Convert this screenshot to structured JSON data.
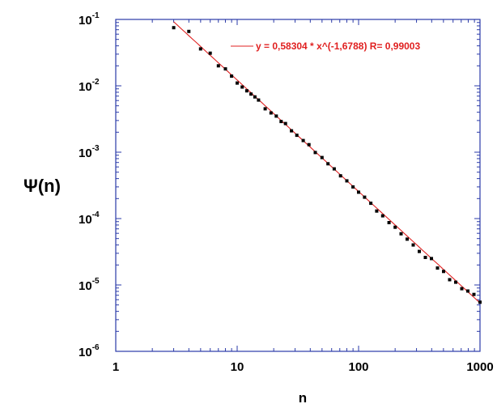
{
  "chart_data": {
    "type": "scatter",
    "title": "",
    "xlabel": "n",
    "ylabel": "Ψ(n)",
    "xscale": "log",
    "yscale": "log",
    "xlim": [
      1,
      1000
    ],
    "ylim": [
      1e-06,
      0.1
    ],
    "grid": false,
    "x_ticks": [
      {
        "value": 1,
        "label": "1"
      },
      {
        "value": 10,
        "label": "10"
      },
      {
        "value": 100,
        "label": "100"
      },
      {
        "value": 1000,
        "label": "1000"
      }
    ],
    "y_ticks": [
      {
        "value": 0.1,
        "base": "10",
        "exp": "-1"
      },
      {
        "value": 0.01,
        "base": "10",
        "exp": "-2"
      },
      {
        "value": 0.001,
        "base": "10",
        "exp": "-3"
      },
      {
        "value": 0.0001,
        "base": "10",
        "exp": "-4"
      },
      {
        "value": 1e-05,
        "base": "10",
        "exp": "-5"
      },
      {
        "value": 1e-06,
        "base": "10",
        "exp": "-6"
      }
    ],
    "frame_color": "#2a3aa8",
    "series": [
      {
        "marker": "square",
        "color": "#000000",
        "x": [
          3,
          4,
          5,
          6,
          7,
          8,
          9,
          10,
          11,
          12,
          13,
          14,
          15,
          17,
          19,
          21,
          23,
          25,
          28,
          31,
          35,
          39,
          44,
          50,
          56,
          63,
          71,
          80,
          90,
          100,
          112,
          126,
          141,
          158,
          178,
          200,
          224,
          251,
          282,
          316,
          355,
          398,
          447,
          501,
          562,
          631,
          708,
          794,
          891,
          1000
        ],
        "y": [
          0.075,
          0.066,
          0.036,
          0.031,
          0.02,
          0.018,
          0.014,
          0.011,
          0.0096,
          0.0084,
          0.0075,
          0.0068,
          0.0061,
          0.0045,
          0.0039,
          0.0035,
          0.0029,
          0.0027,
          0.0021,
          0.0018,
          0.0015,
          0.0013,
          0.00099,
          0.00083,
          0.00067,
          0.00056,
          0.00044,
          0.00037,
          0.0003,
          0.00025,
          0.00021,
          0.00017,
          0.00013,
          0.00011,
          8.7e-05,
          7.4e-05,
          5.9e-05,
          4.9e-05,
          4e-05,
          3.2e-05,
          2.6e-05,
          2.5e-05,
          1.8e-05,
          1.6e-05,
          1.2e-05,
          1.1e-05,
          8.8e-06,
          8.1e-06,
          7.2e-06,
          5.5e-06
        ]
      }
    ],
    "fit": {
      "a": 0.58304,
      "b": -1.6788,
      "x_range": [
        3,
        1000
      ],
      "color": "#e02020",
      "label": "y = 0,58304 * x^(-1,6788)   R= 0,99003",
      "legend_position": "top-right"
    }
  }
}
